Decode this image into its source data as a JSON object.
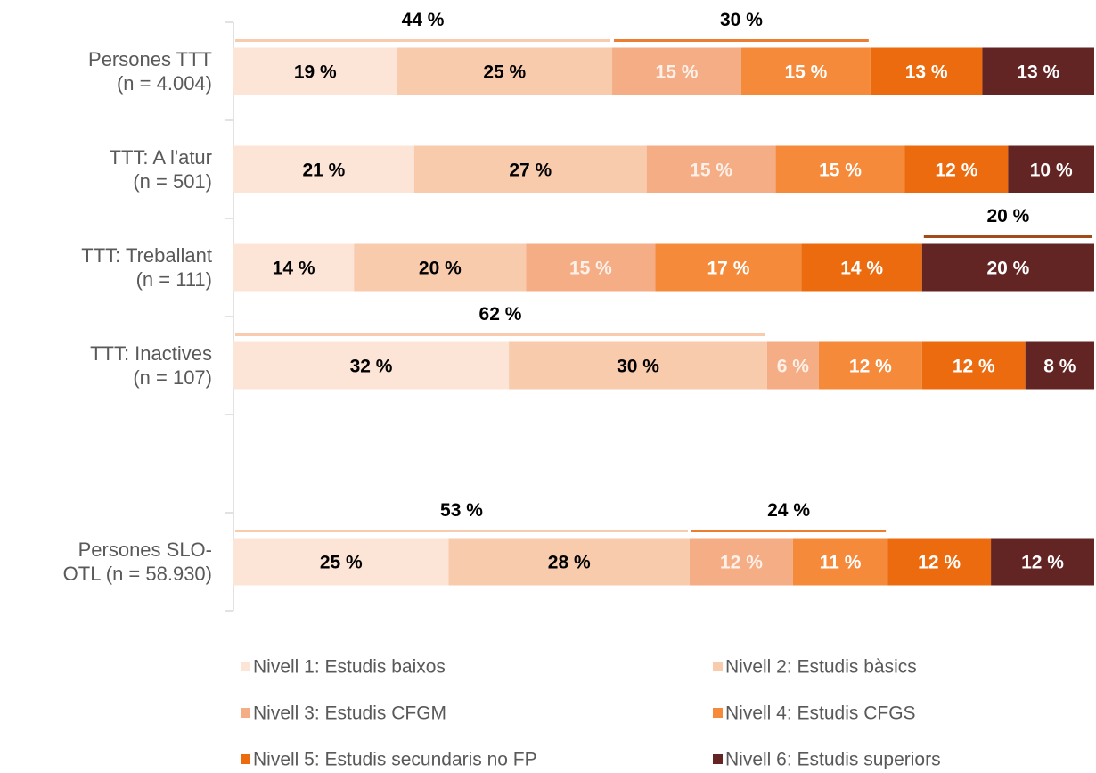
{
  "chart_data": {
    "type": "bar",
    "orientation": "horizontal",
    "stacked": true,
    "categories": [
      "Persones TTT\n(n = 4.004)",
      "TTT: A l'atur\n(n = 501)",
      "TTT: Treballant\n(n = 111)",
      "TTT: Inactives\n(n = 107)",
      null,
      "Persones SLO-\nOTL (n = 58.930)"
    ],
    "xlim": [
      0,
      100
    ],
    "series": [
      {
        "name": "Nivell 1: Estudis baixos",
        "color": "#fce4d6",
        "label_color": "#000000",
        "values": [
          19,
          21,
          14,
          32,
          null,
          25
        ],
        "value_labels": [
          "19 %",
          "21 %",
          "14 %",
          "32 %",
          null,
          "25 %"
        ]
      },
      {
        "name": "Nivell 2: Estudis bàsics",
        "color": "#f8cbad",
        "label_color": "#000000",
        "values": [
          25,
          27,
          20,
          30,
          null,
          28
        ],
        "value_labels": [
          "25 %",
          "27 %",
          "20 %",
          "30 %",
          null,
          "28 %"
        ]
      },
      {
        "name": "Nivell 3: Estudis CFGM",
        "color": "#f4ad85",
        "label_color": "#fdf0e8",
        "values": [
          15,
          15,
          15,
          6,
          null,
          12
        ],
        "value_labels": [
          "15 %",
          "15 %",
          "15 %",
          "6 %",
          null,
          "12 %"
        ]
      },
      {
        "name": "Nivell 4: Estudis CFGS",
        "color": "#f58a3b",
        "label_color": "#ffffff",
        "values": [
          15,
          15,
          17,
          12,
          null,
          11
        ],
        "value_labels": [
          "15 %",
          "15 %",
          "17 %",
          "12 %",
          null,
          "11 %"
        ]
      },
      {
        "name": "Nivell 5: Estudis secundaris no FP",
        "color": "#ec6b0e",
        "label_color": "#ffffff",
        "values": [
          13,
          12,
          14,
          12,
          null,
          12
        ],
        "value_labels": [
          "13 %",
          "12 %",
          "14 %",
          "12 %",
          null,
          "12 %"
        ]
      },
      {
        "name": "Nivell 6: Estudis superiors",
        "color": "#632523",
        "label_color": "#ffffff",
        "values": [
          13,
          10,
          20,
          8,
          null,
          12
        ],
        "value_labels": [
          "13 %",
          "10 %",
          "20 %",
          "8 %",
          null,
          "12 %"
        ]
      }
    ],
    "annotations": [
      {
        "category": 0,
        "series_from": 0,
        "series_to": 1,
        "value": 44,
        "label": "44 %",
        "color": "#f8cbad"
      },
      {
        "category": 0,
        "series_from": 2,
        "series_to": 3,
        "value": 30,
        "label": "30 %",
        "color": "#ed7d31"
      },
      {
        "category": 2,
        "series_from": 5,
        "series_to": 5,
        "value": 20,
        "label": "20 %",
        "color": "#a34a16"
      },
      {
        "category": 3,
        "series_from": 0,
        "series_to": 1,
        "value": 62,
        "label": "62 %",
        "color": "#f8cbad"
      },
      {
        "category": 5,
        "series_from": 0,
        "series_to": 1,
        "value": 53,
        "label": "53 %",
        "color": "#f8cbad"
      },
      {
        "category": 5,
        "series_from": 2,
        "series_to": 3,
        "value": 24,
        "label": "24 %",
        "color": "#ed7d31"
      }
    ]
  }
}
